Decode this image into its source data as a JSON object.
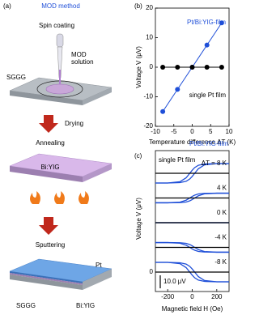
{
  "diagram": {
    "label": "(a)",
    "title": "MOD method",
    "spin_coating": "Spin coating",
    "solution_1": "MOD",
    "solution_2": "solution",
    "substrate": "SGGG",
    "drying": "Drying",
    "annealing": "Annealing",
    "film": "Bi:YIG",
    "sputtering": "Sputtering",
    "metal": "Pt",
    "bottom_substrate": "SGGG",
    "bottom_film": "Bi:YIG"
  },
  "chart_data": [
    {
      "type": "line",
      "label": "(b)",
      "xlabel": "Temperature difference ΔT (K)",
      "ylabel": "Voltage V (μV)",
      "x": [
        -8,
        -4,
        0,
        4,
        8
      ],
      "series": [
        {
          "name": "Pt/Bi:YIG-film",
          "color": "#1f4fd8",
          "values": [
            -15,
            -7.5,
            0,
            7.5,
            15
          ]
        },
        {
          "name": "single Pt film",
          "color": "#000000",
          "values": [
            0,
            0,
            0,
            0,
            0
          ]
        }
      ],
      "xlim": [
        -10,
        10
      ],
      "xticks": [
        -10,
        -5,
        0,
        5,
        10
      ],
      "ylim": [
        -20,
        20
      ],
      "yticks": [
        -20,
        -10,
        0,
        10,
        20
      ]
    },
    {
      "type": "hysteresis",
      "label": "(c)",
      "xlabel": "Magnetic field H (Oe)",
      "ylabel": "Voltage V (μV)",
      "x": [
        -300,
        -200,
        -100,
        -50,
        -20,
        0,
        20,
        50,
        100,
        200,
        300
      ],
      "xlim": [
        -300,
        300
      ],
      "xticks": [
        -200,
        0,
        200
      ],
      "yticks": [
        0
      ],
      "scale_bar": {
        "value": 10,
        "label": "10.0 μV"
      },
      "series": [
        {
          "name": "Pt/Bi:YIG-film",
          "color": "#1f4fd8"
        },
        {
          "name": "single Pt film",
          "color": "#000000"
        }
      ],
      "traces": [
        {
          "label": "ΔT = 8 K",
          "up": [
            -7.5,
            -7.5,
            -7.2,
            -6.2,
            -4.4,
            -2.4,
            0,
            3.5,
            6.5,
            7.5,
            7.5
          ],
          "down": [
            -7.5,
            -7.5,
            -6.5,
            -3.5,
            0,
            2.4,
            4.4,
            6.2,
            7.2,
            7.5,
            7.5
          ],
          "reference": [
            0,
            0,
            0,
            0,
            0,
            0,
            0,
            0,
            0,
            0,
            0
          ]
        },
        {
          "label": "4 K",
          "up": [
            -3.7,
            -3.7,
            -3.6,
            -3.1,
            -2.2,
            -1.2,
            0,
            1.7,
            3.2,
            3.7,
            3.7
          ],
          "down": [
            -3.7,
            -3.7,
            -3.2,
            -1.7,
            0,
            1.2,
            2.2,
            3.1,
            3.6,
            3.7,
            3.7
          ],
          "reference": [
            0,
            0,
            0,
            0,
            0,
            0,
            0,
            0,
            0,
            0,
            0
          ]
        },
        {
          "label": "0 K",
          "up": [
            0,
            0,
            0,
            0,
            0,
            0,
            0,
            0,
            0,
            0,
            0
          ],
          "down": [
            0,
            0,
            0,
            0,
            0,
            0,
            0,
            0,
            0,
            0,
            0
          ],
          "reference": [
            0,
            0,
            0,
            0,
            0,
            0,
            0,
            0,
            0,
            0,
            0
          ]
        },
        {
          "label": "-4 K",
          "up": [
            3.7,
            3.7,
            3.6,
            3.1,
            2.2,
            1.2,
            0,
            -1.7,
            -3.2,
            -3.7,
            -3.7
          ],
          "down": [
            3.7,
            3.7,
            3.2,
            1.7,
            0,
            -1.2,
            -2.2,
            -3.1,
            -3.6,
            -3.7,
            -3.7
          ],
          "reference": [
            0,
            0,
            0,
            0,
            0,
            0,
            0,
            0,
            0,
            0,
            0
          ]
        },
        {
          "label": "-8 K",
          "up": [
            7.5,
            7.5,
            7.2,
            6.2,
            4.4,
            2.4,
            0,
            -3.5,
            -6.5,
            -7.5,
            -7.5
          ],
          "down": [
            7.5,
            7.5,
            6.5,
            3.5,
            0,
            -2.4,
            -4.4,
            -6.2,
            -7.2,
            -7.5,
            -7.5
          ],
          "reference": [
            0,
            0,
            0,
            0,
            0,
            0,
            0,
            0,
            0,
            0,
            0
          ]
        }
      ]
    }
  ]
}
